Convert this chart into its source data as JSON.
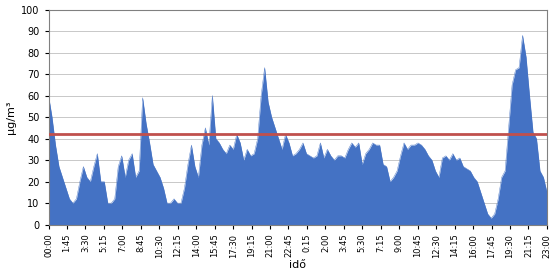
{
  "title": "",
  "xlabel": "idő",
  "ylabel": "µg/m³",
  "ylim": [
    0,
    100
  ],
  "yticks": [
    0,
    10,
    20,
    30,
    40,
    50,
    60,
    70,
    80,
    90,
    100
  ],
  "reference_line": 42,
  "bar_color": "#4472C4",
  "ref_color": "#C0504D",
  "background_color": "#FFFFFF",
  "x_labels": [
    "00:00",
    "1:45",
    "3:30",
    "5:15",
    "7:00",
    "8:45",
    "10:30",
    "12:15",
    "14:00",
    "15:45",
    "17:30",
    "19:15",
    "21:00",
    "22:45",
    "0:15",
    "2:00",
    "3:45",
    "5:30",
    "7:15",
    "9:00",
    "10:45",
    "12:30",
    "14:15",
    "16:00",
    "17:45",
    "19:30",
    "21:15",
    "23:00"
  ],
  "values": [
    60,
    50,
    37,
    27,
    22,
    17,
    12,
    10,
    12,
    20,
    27,
    22,
    20,
    27,
    33,
    20,
    20,
    10,
    10,
    12,
    27,
    32,
    22,
    30,
    33,
    22,
    25,
    59,
    47,
    38,
    28,
    25,
    22,
    17,
    10,
    10,
    12,
    10,
    10,
    17,
    28,
    37,
    27,
    22,
    37,
    45,
    37,
    60,
    40,
    38,
    35,
    33,
    37,
    35,
    42,
    38,
    30,
    35,
    32,
    33,
    40,
    60,
    73,
    57,
    50,
    45,
    40,
    35,
    42,
    38,
    32,
    33,
    35,
    38,
    33,
    32,
    31,
    32,
    38,
    31,
    35,
    32,
    30,
    32,
    32,
    31,
    35,
    38,
    36,
    38,
    28,
    33,
    35,
    38,
    37,
    37,
    28,
    27,
    20,
    22,
    25,
    32,
    38,
    35,
    37,
    37,
    38,
    37,
    35,
    32,
    30,
    25,
    22,
    31,
    32,
    30,
    33,
    30,
    31,
    27,
    26,
    25,
    22,
    20,
    15,
    10,
    5,
    3,
    5,
    12,
    22,
    25,
    45,
    65,
    72,
    73,
    88,
    78,
    60,
    43,
    40,
    25,
    22,
    15
  ]
}
